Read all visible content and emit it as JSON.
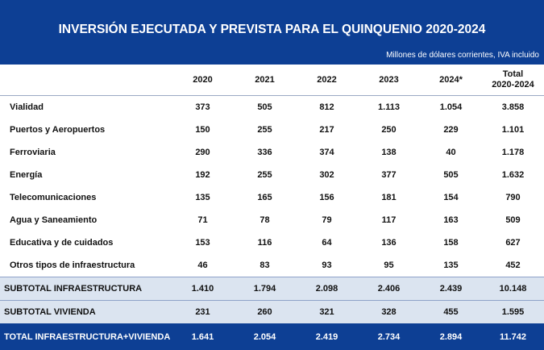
{
  "header": {
    "title": "INVERSIÓN EJECUTADA Y PREVISTA PARA EL QUINQUENIO 2020-2024",
    "subtitle": "Millones de dólares corrientes, IVA incluido"
  },
  "table": {
    "columns": [
      "2020",
      "2021",
      "2022",
      "2023",
      "2024*",
      "Total\n2020-2024"
    ],
    "rows": [
      [
        "Vialidad",
        "373",
        "505",
        "812",
        "1.113",
        "1.054",
        "3.858"
      ],
      [
        "Puertos y Aeropuertos",
        "150",
        "255",
        "217",
        "250",
        "229",
        "1.101"
      ],
      [
        "Ferroviaria",
        "290",
        "336",
        "374",
        "138",
        "40",
        "1.178"
      ],
      [
        "Energía",
        "192",
        "255",
        "302",
        "377",
        "505",
        "1.632"
      ],
      [
        "Telecomunicaciones",
        "135",
        "165",
        "156",
        "181",
        "154",
        "790"
      ],
      [
        "Agua y Saneamiento",
        "71",
        "78",
        "79",
        "117",
        "163",
        "509"
      ],
      [
        "Educativa y de cuidados",
        "153",
        "116",
        "64",
        "136",
        "158",
        "627"
      ],
      [
        "Otros tipos de infraestructura",
        "46",
        "83",
        "93",
        "95",
        "135",
        "452"
      ],
      [
        "SUBTOTAL INFRAESTRUCTURA",
        "1.410",
        "1.794",
        "2.098",
        "2.406",
        "2.439",
        "10.148"
      ],
      [
        "SUBTOTAL VIVIENDA",
        "231",
        "260",
        "321",
        "328",
        "455",
        "1.595"
      ],
      [
        "TOTAL INFRAESTRUCTURA+VIVIENDA",
        "1.641",
        "2.054",
        "2.419",
        "2.734",
        "2.894",
        "11.742"
      ]
    ]
  }
}
